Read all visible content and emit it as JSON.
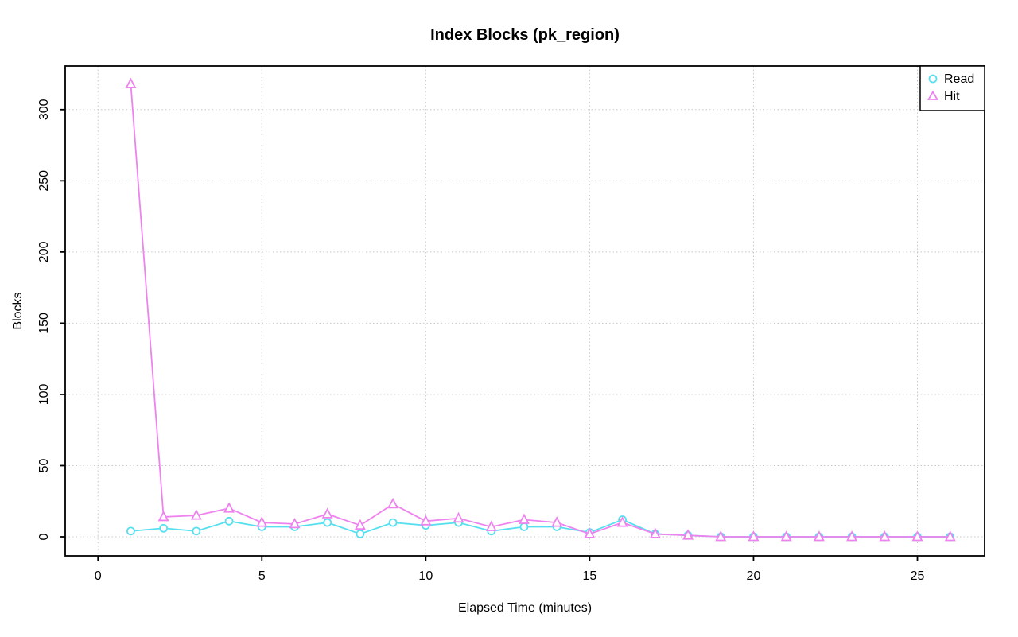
{
  "page": {
    "background": "#ffffff"
  },
  "chart_data": {
    "type": "line",
    "title": "Index Blocks (pk_region)",
    "xlabel": "Elapsed Time (minutes)",
    "ylabel": "Blocks",
    "x": [
      1,
      2,
      3,
      4,
      5,
      6,
      7,
      8,
      9,
      10,
      11,
      12,
      13,
      14,
      15,
      16,
      17,
      18,
      19,
      20,
      21,
      22,
      23,
      24,
      25,
      26
    ],
    "series": [
      {
        "name": "Read",
        "marker": "circle",
        "color": "#57DFEF",
        "values": [
          4,
          6,
          4,
          11,
          7,
          7,
          10,
          2,
          10,
          8,
          10,
          4,
          7,
          7,
          3,
          12,
          2,
          1,
          0,
          0,
          0,
          0,
          0,
          0,
          0,
          0
        ]
      },
      {
        "name": "Hit",
        "marker": "triangle",
        "color": "#EE82EE",
        "values": [
          318,
          14,
          15,
          20,
          10,
          9,
          16,
          8,
          23,
          11,
          13,
          7,
          12,
          10,
          2,
          10,
          2,
          1,
          0,
          0,
          0,
          0,
          0,
          0,
          0,
          0
        ]
      }
    ],
    "x_ticks": [
      0,
      5,
      10,
      15,
      20,
      25
    ],
    "y_ticks": [
      0,
      50,
      100,
      150,
      200,
      250,
      300
    ],
    "xlim": [
      -1.0,
      27.05
    ],
    "ylim": [
      -13.4,
      330.6
    ],
    "grid": "dotted",
    "grid_color": "#C8C8C8",
    "axis_color": "#000000",
    "marker_fill": "#ffffff",
    "legend_position": "top-right"
  }
}
